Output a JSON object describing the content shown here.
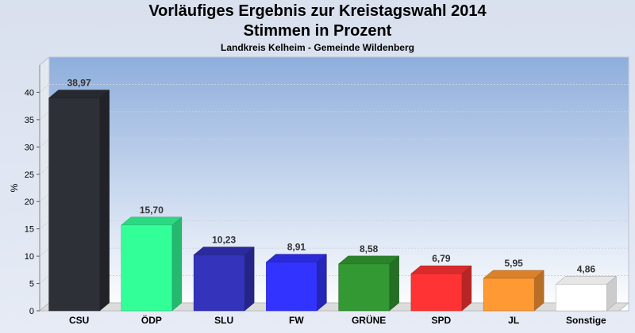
{
  "header": {
    "title_line1": "Vorläufiges Ergebnis zur Kreistagswahl 2014",
    "title_line2": "Stimmen in Prozent",
    "subtitle": "Landkreis Kelheim - Gemeinde Wildenberg"
  },
  "chart_data": {
    "type": "bar",
    "title": "Vorläufiges Ergebnis zur Kreistagswahl 2014 Stimmen in Prozent",
    "subtitle": "Landkreis Kelheim - Gemeinde Wildenberg",
    "xlabel": "",
    "ylabel": "%",
    "ylim": [
      0,
      45
    ],
    "yticks": [
      0,
      5,
      10,
      15,
      20,
      25,
      30,
      35,
      40
    ],
    "grid": true,
    "categories": [
      "CSU",
      "ÖDP",
      "SLU",
      "FW",
      "GRÜNE",
      "SPD",
      "JL",
      "Sonstige"
    ],
    "values": [
      38.97,
      15.7,
      10.23,
      8.91,
      8.58,
      6.79,
      5.95,
      4.86
    ],
    "value_labels": [
      "38,97",
      "15,70",
      "10,23",
      "8,91",
      "8,58",
      "6,79",
      "5,95",
      "4,86"
    ],
    "colors": [
      "#2e3038",
      "#33ff99",
      "#3333bb",
      "#3333ff",
      "#339933",
      "#ff3333",
      "#ff9933",
      "#ffffff"
    ]
  }
}
